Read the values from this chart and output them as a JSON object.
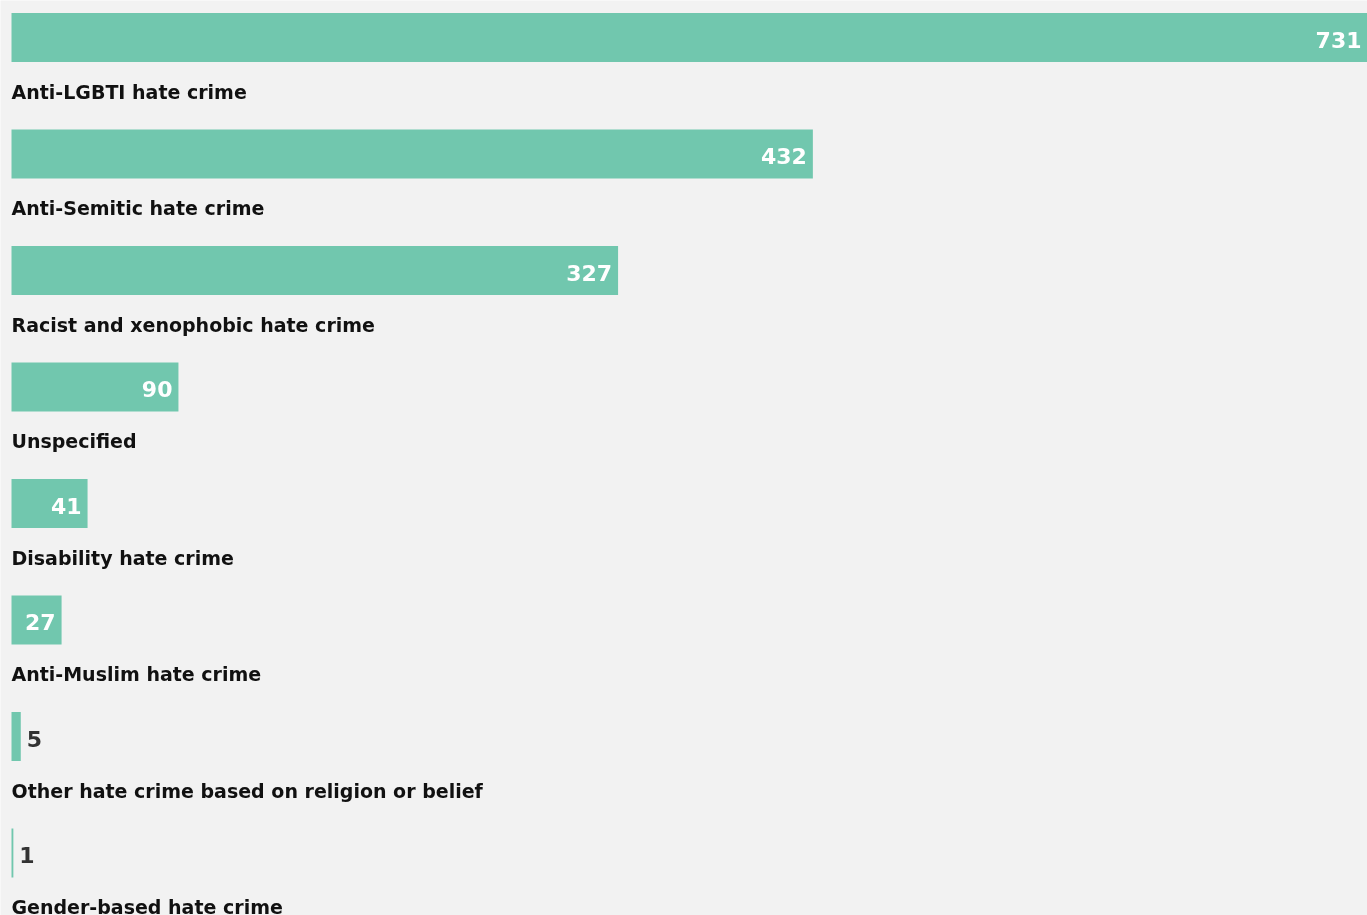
{
  "chart_data": {
    "type": "bar",
    "orientation": "horizontal",
    "categories": [
      "Anti-LGBTI hate crime",
      "Anti-Semitic hate crime",
      "Racist and xenophobic hate crime",
      "Unspecified",
      "Disability hate crime",
      "Anti-Muslim hate crime",
      "Other hate crime based on religion or belief",
      "Gender-based hate crime"
    ],
    "values": [
      731,
      432,
      327,
      90,
      41,
      27,
      5,
      1
    ],
    "color": "#71c7ae",
    "data_labels": true
  }
}
